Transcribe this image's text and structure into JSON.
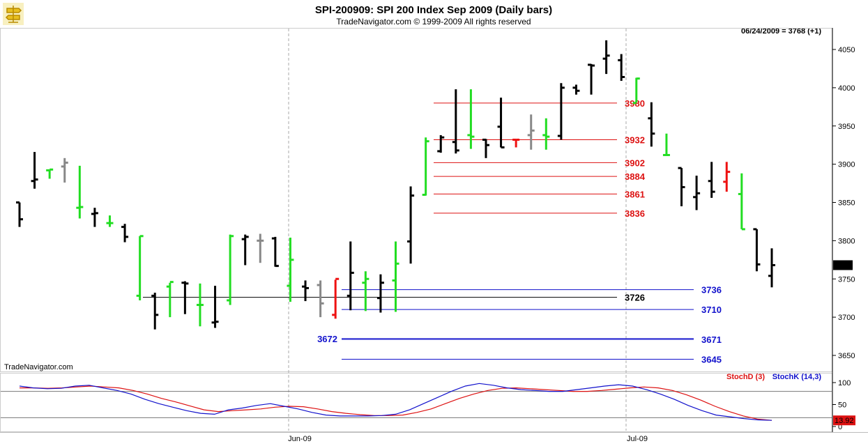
{
  "header": {
    "title": "SPI-200909:  SPI 200 Index Sep 2009  (Daily bars)",
    "copyright": "TradeNavigator.com © 1999-2009 All rights reserved",
    "quote": "06/24/2009 = 3768 (+1)",
    "watermark": "TradeNavigator.com",
    "logo_icon": "signpost-logo-icon"
  },
  "chart_data": [
    {
      "type": "bar",
      "subtype": "ohlc",
      "ylim": [
        3620,
        4075
      ],
      "y_ticks": [
        "4050",
        "4000",
        "3950",
        "3900",
        "3850",
        "3800",
        "3750",
        "3700",
        "3650"
      ],
      "x_ticks": [
        "Jun-09",
        "Jul-09"
      ],
      "last_price_label": "3768",
      "colors": {
        "down": "#000000",
        "up": "#22dd22",
        "doji_red": "#ee1111",
        "doji_gray": "#888888"
      },
      "bars": [
        {
          "o": 3850,
          "h": 3850,
          "l": 3818,
          "c": 3828,
          "col": "down"
        },
        {
          "o": 3878,
          "h": 3916,
          "l": 3868,
          "c": 3880,
          "col": "down"
        },
        {
          "o": 3892,
          "h": 3892,
          "l": 3881,
          "c": 3893,
          "col": "up"
        },
        {
          "o": 3897,
          "h": 3908,
          "l": 3876,
          "c": 3902,
          "col": "doji_gray"
        },
        {
          "o": 3843,
          "h": 3898,
          "l": 3829,
          "c": 3844,
          "col": "up"
        },
        {
          "o": 3835,
          "h": 3843,
          "l": 3818,
          "c": 3836,
          "col": "down"
        },
        {
          "o": 3823,
          "h": 3833,
          "l": 3818,
          "c": 3823,
          "col": "up"
        },
        {
          "o": 3818,
          "h": 3822,
          "l": 3798,
          "c": 3805,
          "col": "down"
        },
        {
          "o": 3728,
          "h": 3806,
          "l": 3722,
          "c": 3806,
          "col": "up"
        },
        {
          "o": 3728,
          "h": 3732,
          "l": 3684,
          "c": 3703,
          "col": "down"
        },
        {
          "o": 3740,
          "h": 3745,
          "l": 3700,
          "c": 3746,
          "col": "up"
        },
        {
          "o": 3745,
          "h": 3747,
          "l": 3704,
          "c": 3744,
          "col": "down"
        },
        {
          "o": 3716,
          "h": 3744,
          "l": 3688,
          "c": 3716,
          "col": "up"
        },
        {
          "o": 3693,
          "h": 3741,
          "l": 3686,
          "c": 3694,
          "col": "down"
        },
        {
          "o": 3722,
          "h": 3808,
          "l": 3716,
          "c": 3806,
          "col": "up"
        },
        {
          "o": 3802,
          "h": 3808,
          "l": 3768,
          "c": 3805,
          "col": "down"
        },
        {
          "o": 3800,
          "h": 3809,
          "l": 3771,
          "c": 3800,
          "col": "doji_gray"
        },
        {
          "o": 3803,
          "h": 3805,
          "l": 3766,
          "c": 3767,
          "col": "down"
        },
        {
          "o": 3741,
          "h": 3804,
          "l": 3720,
          "c": 3775,
          "col": "up"
        },
        {
          "o": 3740,
          "h": 3748,
          "l": 3721,
          "c": 3738,
          "col": "down"
        },
        {
          "o": 3742,
          "h": 3748,
          "l": 3700,
          "c": 3718,
          "col": "doji_gray"
        },
        {
          "o": 3703,
          "h": 3749,
          "l": 3698,
          "c": 3750,
          "col": "doji_red"
        },
        {
          "o": 3728,
          "h": 3799,
          "l": 3709,
          "c": 3758,
          "col": "down"
        },
        {
          "o": 3745,
          "h": 3760,
          "l": 3708,
          "c": 3750,
          "col": "up"
        },
        {
          "o": 3725,
          "h": 3756,
          "l": 3706,
          "c": 3745,
          "col": "down"
        },
        {
          "o": 3748,
          "h": 3799,
          "l": 3707,
          "c": 3770,
          "col": "up"
        },
        {
          "o": 3799,
          "h": 3871,
          "l": 3770,
          "c": 3859,
          "col": "down"
        },
        {
          "o": 3860,
          "h": 3935,
          "l": 3859,
          "c": 3930,
          "col": "up"
        },
        {
          "o": 3917,
          "h": 3938,
          "l": 3915,
          "c": 3935,
          "col": "down"
        },
        {
          "o": 3929,
          "h": 3998,
          "l": 3914,
          "c": 3918,
          "col": "down"
        },
        {
          "o": 3938,
          "h": 3998,
          "l": 3920,
          "c": 3936,
          "col": "up"
        },
        {
          "o": 3932,
          "h": 3933,
          "l": 3908,
          "c": 3925,
          "col": "down"
        },
        {
          "o": 3949,
          "h": 3987,
          "l": 3922,
          "c": 3922,
          "col": "down"
        },
        {
          "o": 3932,
          "h": 3932,
          "l": 3922,
          "c": 3932,
          "col": "doji_red"
        },
        {
          "o": 3938,
          "h": 3965,
          "l": 3919,
          "c": 3944,
          "col": "doji_gray"
        },
        {
          "o": 3938,
          "h": 3960,
          "l": 3919,
          "c": 3936,
          "col": "up"
        },
        {
          "o": 3937,
          "h": 4006,
          "l": 3932,
          "c": 4000,
          "col": "down"
        },
        {
          "o": 4000,
          "h": 4004,
          "l": 3991,
          "c": 3996,
          "col": "down"
        },
        {
          "o": 4030,
          "h": 4031,
          "l": 3991,
          "c": 4029,
          "col": "down"
        },
        {
          "o": 4038,
          "h": 4062,
          "l": 4018,
          "c": 4042,
          "col": "down"
        },
        {
          "o": 4036,
          "h": 4044,
          "l": 4009,
          "c": 4014,
          "col": "down"
        },
        {
          "o": 3980,
          "h": 4013,
          "l": 3981,
          "c": 4012,
          "col": "up"
        },
        {
          "o": 3960,
          "h": 3981,
          "l": 3923,
          "c": 3940,
          "col": "down"
        },
        {
          "o": 3912,
          "h": 3940,
          "l": 3911,
          "c": 3912,
          "col": "up"
        },
        {
          "o": 3895,
          "h": 3895,
          "l": 3845,
          "c": 3870,
          "col": "down"
        },
        {
          "o": 3857,
          "h": 3885,
          "l": 3840,
          "c": 3862,
          "col": "down"
        },
        {
          "o": 3878,
          "h": 3903,
          "l": 3856,
          "c": 3864,
          "col": "down"
        },
        {
          "o": 3877,
          "h": 3903,
          "l": 3864,
          "c": 3890,
          "col": "doji_red"
        },
        {
          "o": 3861,
          "h": 3888,
          "l": 3815,
          "c": 3815,
          "col": "up"
        },
        {
          "o": 3815,
          "h": 3815,
          "l": 3760,
          "c": 3769,
          "col": "down"
        },
        {
          "o": 3754,
          "h": 3790,
          "l": 3739,
          "c": 3768,
          "col": "down"
        }
      ],
      "levels": [
        {
          "label": "3980",
          "value": 3980,
          "color": "#dd1111",
          "side": "left"
        },
        {
          "label": "3932",
          "value": 3932,
          "color": "#dd1111",
          "side": "left"
        },
        {
          "label": "3902",
          "value": 3902,
          "color": "#dd1111",
          "side": "left"
        },
        {
          "label": "3884",
          "value": 3884,
          "color": "#dd1111",
          "side": "left"
        },
        {
          "label": "3861",
          "value": 3861,
          "color": "#dd1111",
          "side": "left"
        },
        {
          "label": "3836",
          "value": 3836,
          "color": "#dd1111",
          "side": "left"
        },
        {
          "label": "3736",
          "value": 3736,
          "color": "#1111cc",
          "side": "right"
        },
        {
          "label": "3726",
          "value": 3726,
          "color": "#000000",
          "side": "left"
        },
        {
          "label": "3710",
          "value": 3710,
          "color": "#1111cc",
          "side": "right"
        },
        {
          "label": "3672",
          "value": 3672,
          "color": "#1111cc",
          "side": "leftedge"
        },
        {
          "label": "3671",
          "value": 3671,
          "color": "#1111cc",
          "side": "right"
        },
        {
          "label": "3645",
          "value": 3645,
          "color": "#1111cc",
          "side": "right"
        }
      ]
    },
    {
      "type": "line",
      "ylim": [
        0,
        115
      ],
      "y_ticks": [
        "100",
        "50",
        "0"
      ],
      "hlines": [
        80,
        20
      ],
      "last_value_label": "13.92",
      "series": [
        {
          "name": "StochD (3)",
          "color": "#dd1111",
          "values": [
            88,
            88,
            87,
            88,
            90,
            92,
            90,
            88,
            82,
            74,
            64,
            56,
            47,
            38,
            34,
            36,
            38,
            40,
            44,
            46,
            45,
            40,
            34,
            30,
            27,
            25,
            25,
            26,
            32,
            40,
            52,
            64,
            74,
            82,
            87,
            88,
            86,
            84,
            82,
            80,
            80,
            82,
            85,
            88,
            90,
            88,
            82,
            72,
            60,
            46,
            34,
            24,
            17,
            14
          ]
        },
        {
          "name": "StochK (14,3)",
          "color": "#1111cc",
          "values": [
            92,
            88,
            86,
            87,
            92,
            94,
            88,
            82,
            74,
            62,
            52,
            44,
            36,
            30,
            28,
            38,
            42,
            48,
            52,
            46,
            40,
            32,
            26,
            24,
            24,
            24,
            25,
            28,
            38,
            52,
            66,
            80,
            92,
            98,
            94,
            88,
            84,
            82,
            80,
            80,
            84,
            88,
            92,
            95,
            92,
            84,
            74,
            62,
            48,
            36,
            26,
            22,
            18,
            15,
            14
          ]
        }
      ]
    }
  ]
}
